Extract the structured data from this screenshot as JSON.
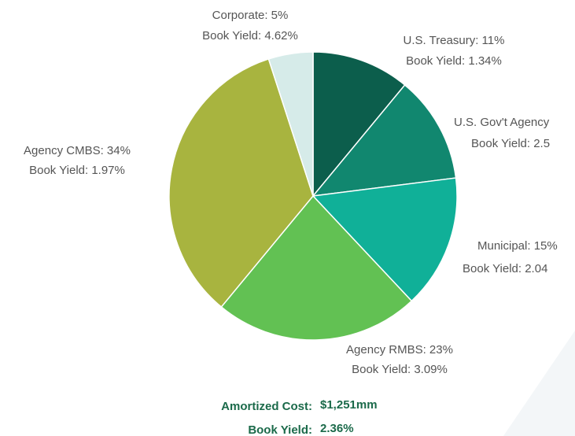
{
  "chart_data": {
    "type": "pie",
    "values": [
      11,
      12,
      15,
      23,
      34,
      5
    ],
    "value_labels": [
      "U.S. Treasury: 11%",
      "U.S. Gov't Agency",
      "Municipal: 15%",
      "Agency RMBS: 23%",
      "Agency CMBS: 34%",
      "Corporate: 5%"
    ],
    "sub_labels": [
      "Book Yield: 1.34%",
      "Book Yield: 2.5",
      "Book Yield: 2.04",
      "Book Yield: 3.09%",
      "Book Yield: 1.97%",
      "Book Yield: 4.62%"
    ],
    "colors": [
      "#0c5e4c",
      "#11876f",
      "#10b098",
      "#62c153",
      "#a8b43f",
      "#d6ebe9"
    ],
    "summary": [
      {
        "label": "Amortized Cost:",
        "value": "$1,251mm"
      },
      {
        "label": "Book Yield:",
        "value": "2.36%"
      }
    ]
  }
}
